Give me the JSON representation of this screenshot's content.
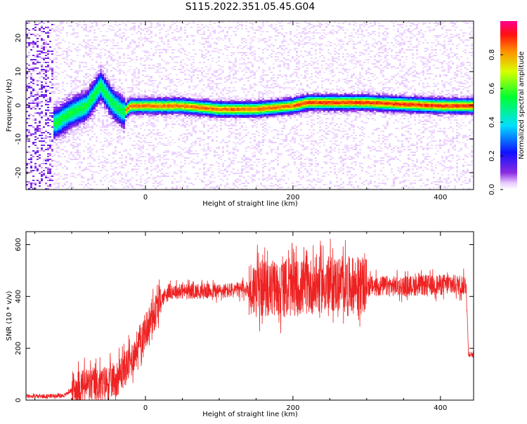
{
  "title": "S115.2022.351.05.45.G04",
  "colors": {
    "snr_line": "#ee2222",
    "axis": "#000000"
  },
  "chart_data": [
    {
      "type": "heatmap",
      "title": "S115.2022.351.05.45.G04",
      "xlabel": "Height of straight line (km)",
      "ylabel": "Frequency (Hz)",
      "xlim": [
        -162,
        445
      ],
      "ylim": [
        -25,
        25
      ],
      "x_ticks": [
        0,
        200,
        400
      ],
      "y_ticks": [
        -20,
        -10,
        0,
        10,
        20
      ],
      "colorbar": {
        "label": "Normalized spectral amplitude",
        "range": [
          0.0,
          1.0
        ],
        "ticks": [
          "0.0",
          "0.2",
          "0.4",
          "0.6",
          "0.8"
        ],
        "colormap": "rainbow"
      },
      "ridge": {
        "x": [
          -120,
          -100,
          -80,
          -60,
          -45,
          -30,
          -20,
          0,
          50,
          100,
          150,
          200,
          220,
          300,
          400,
          445
        ],
        "frequency": [
          -5,
          -2,
          0,
          6,
          1,
          -2,
          0,
          0,
          0,
          -1,
          -1,
          0,
          1,
          1,
          0,
          0
        ]
      }
    },
    {
      "type": "line",
      "xlabel": "Height of straight line (km)",
      "ylabel": "SNR (10 * v/v)",
      "xlim": [
        -162,
        445
      ],
      "ylim": [
        0,
        650
      ],
      "x_ticks": [
        0,
        200,
        400
      ],
      "y_ticks": [
        0,
        200,
        400,
        600
      ],
      "series": [
        {
          "x": [
            -162,
            -140,
            -110,
            -100,
            -80,
            -60,
            -40,
            -20,
            0,
            20,
            30,
            50,
            100,
            150,
            200,
            250,
            300,
            350,
            400,
            435,
            438,
            445
          ],
          "values": [
            15,
            15,
            18,
            40,
            60,
            60,
            80,
            150,
            270,
            380,
            420,
            420,
            420,
            430,
            430,
            450,
            440,
            440,
            445,
            445,
            180,
            175
          ]
        }
      ]
    }
  ]
}
